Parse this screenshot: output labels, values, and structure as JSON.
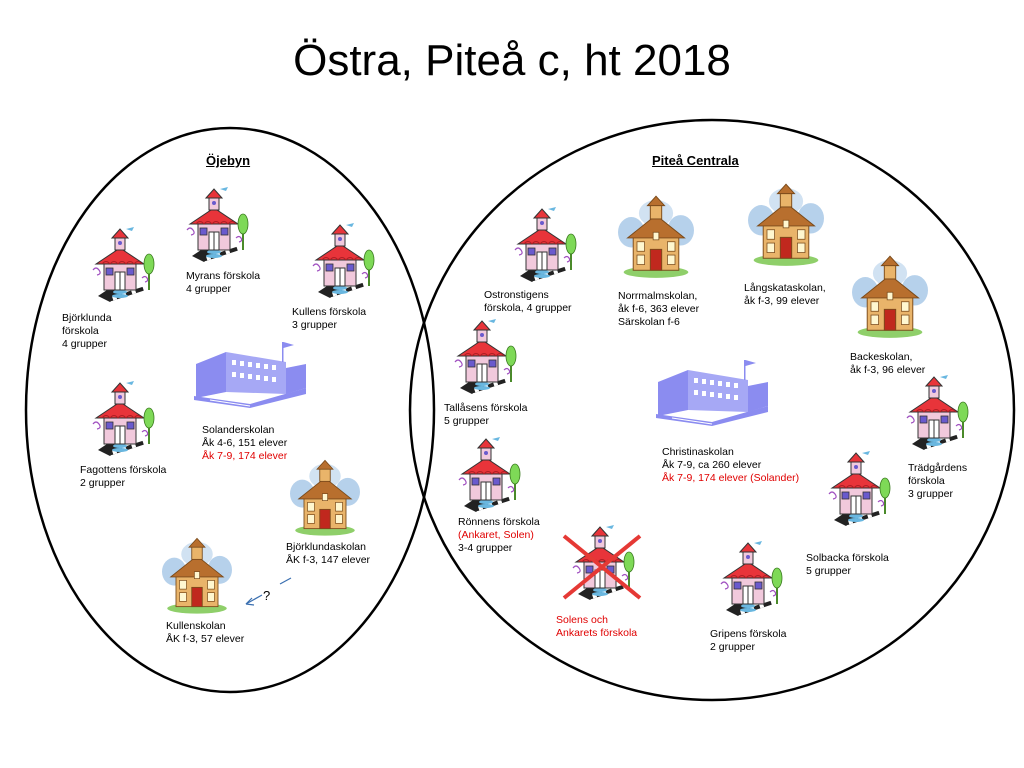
{
  "title": "Östra, Piteå c, ht 2018",
  "regions": {
    "ojebyn": "Öjebyn",
    "central": "Piteå Centrala"
  },
  "labels": {
    "myrans": [
      "Myrans förskola",
      "4 grupper"
    ],
    "kullens": [
      "Kullens förskola",
      "3 grupper"
    ],
    "bjorklunda": [
      "Björklunda",
      "förskola",
      "4 grupper"
    ],
    "solanderskolan": [
      "Solanderskolan",
      "Åk 4-6, 151 elever"
    ],
    "solanderskolan_red": "Åk 7-9, 174 elever",
    "fagottens": [
      "Fagottens förskola",
      "2 grupper"
    ],
    "bjorklundaskolan": [
      "Björklundaskolan",
      "ÅK f-3, 147 elever"
    ],
    "kullenskolan": [
      "Kullenskolan",
      "ÅK f-3, 57 elever"
    ],
    "question": "?",
    "ostronstigens": [
      "Ostronstigens",
      "förskola, 4 grupper"
    ],
    "normalmskolan": [
      "Norrmalmskolan,",
      "åk f-6, 363  elever",
      "Särskolan f-6"
    ],
    "langskataskolan": [
      "Långskataskolan,",
      "åk f-3, 99 elever"
    ],
    "backeskolan": [
      "Backeskolan,",
      "åk f-3, 96 elever"
    ],
    "tallasens": [
      "Tallåsens förskola",
      "5 grupper"
    ],
    "christinaskolan": [
      "Christinaskolan",
      "Åk 7-9,  ca 260 elever"
    ],
    "christinaskolan_red": "Åk 7-9, 174 elever (Solander)",
    "tradgardens": [
      "Trädgårdens",
      "förskola",
      "3 grupper"
    ],
    "ronnens": "Rönnens förskola",
    "ronnens_red": "(Ankaret, Solen)",
    "ronnens_groups": "3-4 grupper",
    "solbacka": [
      "Solbacka förskola",
      "5 grupper"
    ],
    "solens_red": [
      "Solens och",
      "Ankarets förskola"
    ],
    "gripens": [
      "Gripens förskola",
      "2 grupper"
    ]
  },
  "colors": {
    "preschool_roof": "#e8343a",
    "preschool_wall": "#f1c9dc",
    "school_wall": "#e9b46a",
    "school_roof": "#b86f2e",
    "big_school": "#8b8cf0",
    "cloud": "#a9c9e8",
    "cross": "#e53935",
    "red_text": "#e00000"
  }
}
